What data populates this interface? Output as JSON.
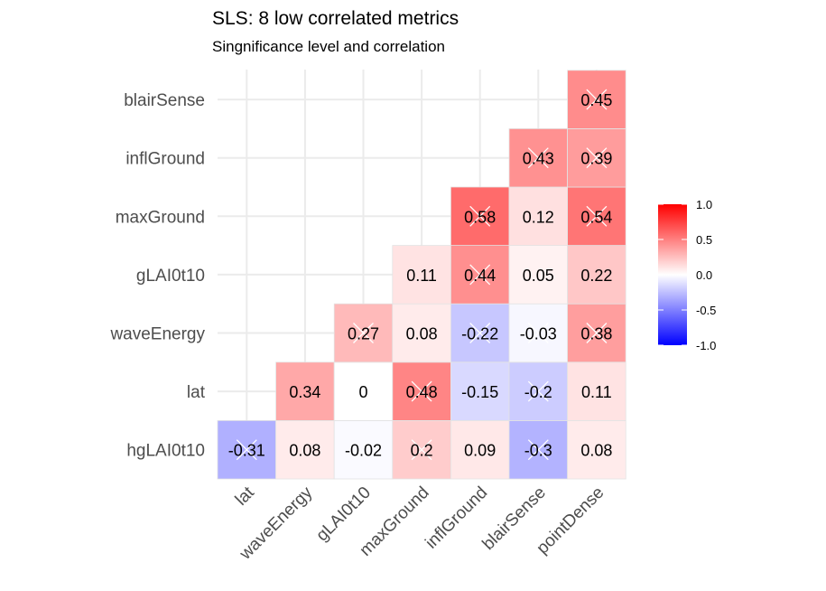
{
  "chart_data": {
    "type": "heatmap",
    "title": "SLS: 8 low correlated metrics",
    "subtitle": "Singnificance level and correlation",
    "x_categories": [
      "lat",
      "waveEnergy",
      "gLAI0t10",
      "maxGround",
      "inflGround",
      "blairSense",
      "pointDense"
    ],
    "y_categories": [
      "hgLAI0t10",
      "lat",
      "waveEnergy",
      "gLAI0t10",
      "maxGround",
      "inflGround",
      "blairSense"
    ],
    "cells": [
      {
        "x": "lat",
        "y": "hgLAI0t10",
        "value": -0.31,
        "label": "-0.31",
        "insignificant": true
      },
      {
        "x": "waveEnergy",
        "y": "hgLAI0t10",
        "value": 0.08,
        "label": "0.08",
        "insignificant": false
      },
      {
        "x": "gLAI0t10",
        "y": "hgLAI0t10",
        "value": -0.02,
        "label": "-0.02",
        "insignificant": false
      },
      {
        "x": "maxGround",
        "y": "hgLAI0t10",
        "value": 0.2,
        "label": "0.2",
        "insignificant": true
      },
      {
        "x": "inflGround",
        "y": "hgLAI0t10",
        "value": 0.09,
        "label": "0.09",
        "insignificant": false
      },
      {
        "x": "blairSense",
        "y": "hgLAI0t10",
        "value": -0.3,
        "label": "-0.3",
        "insignificant": true
      },
      {
        "x": "pointDense",
        "y": "hgLAI0t10",
        "value": 0.08,
        "label": "0.08",
        "insignificant": false
      },
      {
        "x": "waveEnergy",
        "y": "lat",
        "value": 0.34,
        "label": "0.34",
        "insignificant": false
      },
      {
        "x": "gLAI0t10",
        "y": "lat",
        "value": 0,
        "label": "0",
        "insignificant": false
      },
      {
        "x": "maxGround",
        "y": "lat",
        "value": 0.48,
        "label": "0.48",
        "insignificant": true
      },
      {
        "x": "inflGround",
        "y": "lat",
        "value": -0.15,
        "label": "-0.15",
        "insignificant": false
      },
      {
        "x": "blairSense",
        "y": "lat",
        "value": -0.2,
        "label": "-0.2",
        "insignificant": true
      },
      {
        "x": "pointDense",
        "y": "lat",
        "value": 0.11,
        "label": "0.11",
        "insignificant": false
      },
      {
        "x": "gLAI0t10",
        "y": "waveEnergy",
        "value": 0.27,
        "label": "0.27",
        "insignificant": true
      },
      {
        "x": "maxGround",
        "y": "waveEnergy",
        "value": 0.08,
        "label": "0.08",
        "insignificant": false
      },
      {
        "x": "inflGround",
        "y": "waveEnergy",
        "value": -0.22,
        "label": "-0.22",
        "insignificant": true
      },
      {
        "x": "blairSense",
        "y": "waveEnergy",
        "value": -0.03,
        "label": "-0.03",
        "insignificant": true
      },
      {
        "x": "pointDense",
        "y": "waveEnergy",
        "value": 0.38,
        "label": "0.38",
        "insignificant": true
      },
      {
        "x": "maxGround",
        "y": "gLAI0t10",
        "value": 0.11,
        "label": "0.11",
        "insignificant": false
      },
      {
        "x": "inflGround",
        "y": "gLAI0t10",
        "value": 0.44,
        "label": "0.44",
        "insignificant": true
      },
      {
        "x": "blairSense",
        "y": "gLAI0t10",
        "value": 0.05,
        "label": "0.05",
        "insignificant": false
      },
      {
        "x": "pointDense",
        "y": "gLAI0t10",
        "value": 0.22,
        "label": "0.22",
        "insignificant": false
      },
      {
        "x": "inflGround",
        "y": "maxGround",
        "value": 0.58,
        "label": "0.58",
        "insignificant": true
      },
      {
        "x": "blairSense",
        "y": "maxGround",
        "value": 0.12,
        "label": "0.12",
        "insignificant": false
      },
      {
        "x": "pointDense",
        "y": "maxGround",
        "value": 0.54,
        "label": "0.54",
        "insignificant": true
      },
      {
        "x": "blairSense",
        "y": "inflGround",
        "value": 0.43,
        "label": "0.43",
        "insignificant": true
      },
      {
        "x": "pointDense",
        "y": "inflGround",
        "value": 0.39,
        "label": "0.39",
        "insignificant": true
      },
      {
        "x": "pointDense",
        "y": "blairSense",
        "value": 0.45,
        "label": "0.45",
        "insignificant": true
      }
    ],
    "legend": {
      "ticks": [
        "1.0",
        "0.5",
        "0.0",
        "-0.5",
        "-1.0"
      ],
      "tick_values": [
        1.0,
        0.5,
        0.0,
        -0.5,
        -1.0
      ],
      "range": [
        -1,
        1
      ],
      "colors": {
        "low": "#0000ff",
        "mid": "#ffffff",
        "high": "#ff0000"
      },
      "placement": "right"
    },
    "colors": {
      "grid": "#ebebeb",
      "cell_border": "#e3e3e3",
      "cross": "#ffffff"
    }
  }
}
